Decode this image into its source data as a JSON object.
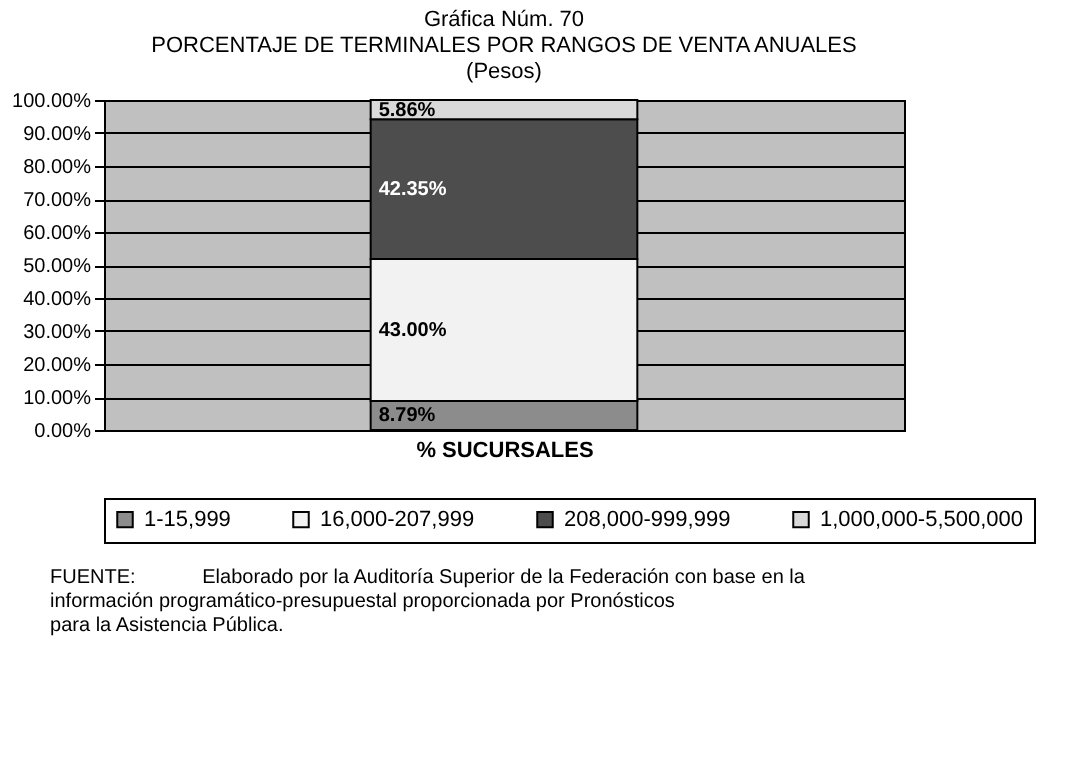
{
  "chart_data": {
    "type": "bar",
    "stacked": true,
    "title": "Gráfica Núm. 70\nPORCENTAJE DE TERMINALES POR RANGOS DE VENTA ANUALES\n(Pesos)",
    "xlabel": "% SUCURSALES",
    "categories": [
      null
    ],
    "series": [
      {
        "name": "1-15,999",
        "color": "#8c8c8c",
        "values": [
          8.79
        ],
        "value_labels": [
          "8.79%"
        ]
      },
      {
        "name": "16,000-207,999",
        "color": "#f2f2f2",
        "values": [
          43.0
        ],
        "value_labels": [
          "43.00%"
        ]
      },
      {
        "name": "208,000-999,999",
        "color": "#4d4d4d",
        "values": [
          42.35
        ],
        "value_labels": [
          "42.35%"
        ]
      },
      {
        "name": "1,000,000-5,500,000",
        "color": "#d9d9d9",
        "values": [
          5.86
        ],
        "value_labels": [
          "5.86%"
        ]
      }
    ],
    "ylim": [
      0,
      100
    ],
    "yticks": [
      {
        "value": 0,
        "label": "0.00%"
      },
      {
        "value": 10,
        "label": "10.00%"
      },
      {
        "value": 20,
        "label": "20.00%"
      },
      {
        "value": 30,
        "label": "30.00%"
      },
      {
        "value": 40,
        "label": "40.00%"
      },
      {
        "value": 50,
        "label": "50.00%"
      },
      {
        "value": 60,
        "label": "60.00%"
      },
      {
        "value": 70,
        "label": "70.00%"
      },
      {
        "value": 80,
        "label": "80.00%"
      },
      {
        "value": 90,
        "label": "90.00%"
      },
      {
        "value": 100,
        "label": "100.00%"
      }
    ],
    "grid": "y",
    "legend": "bottom",
    "tick_labels": "y",
    "annotations": [
      "FUENTE:",
      "Elaborado por la Auditoría Superior de la Federación con base en la información programático-presupuestal proporcionada por Pronósticos para la Asistencia Pública."
    ]
  }
}
